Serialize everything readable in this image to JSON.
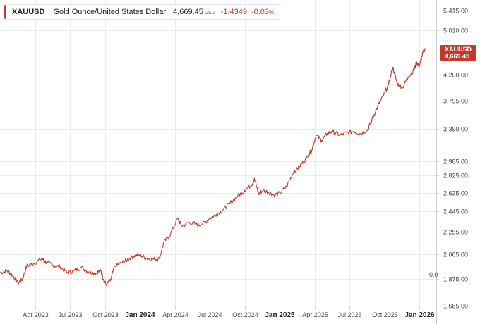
{
  "legend": {
    "symbol": "XAUUSD",
    "name": "Gold Ounce/United States Dollar",
    "price": "4,669.45",
    "unit": "USD",
    "change": "-1.4349",
    "change_pct": "-0.03",
    "pct_sign": "%"
  },
  "price_tag": {
    "symbol": "XAUUSD",
    "value": "4,669.45"
  },
  "colors": {
    "line": "#c0392b",
    "tag": "#c0392b",
    "grid": "#e6e6e6",
    "axis": "#cccccc"
  },
  "chart_data": {
    "type": "line",
    "title": "XAUUSD Gold Ounce/United States Dollar",
    "series": [
      {
        "name": "XAUUSD",
        "points": [
          [
            2023.0,
            1920
          ],
          [
            2023.05,
            1935
          ],
          [
            2023.09,
            1900
          ],
          [
            2023.13,
            1845
          ],
          [
            2023.16,
            1870
          ],
          [
            2023.19,
            1970
          ],
          [
            2023.24,
            1990
          ],
          [
            2023.3,
            2030
          ],
          [
            2023.33,
            2000
          ],
          [
            2023.38,
            1975
          ],
          [
            2023.43,
            1965
          ],
          [
            2023.48,
            1920
          ],
          [
            2023.53,
            1935
          ],
          [
            2023.58,
            1960
          ],
          [
            2023.63,
            1930
          ],
          [
            2023.68,
            1915
          ],
          [
            2023.72,
            1935
          ],
          [
            2023.74,
            1870
          ],
          [
            2023.76,
            1830
          ],
          [
            2023.79,
            1860
          ],
          [
            2023.82,
            1970
          ],
          [
            2023.87,
            1995
          ],
          [
            2023.91,
            2020
          ],
          [
            2023.95,
            2050
          ],
          [
            2024.0,
            2060
          ],
          [
            2024.05,
            2030
          ],
          [
            2024.1,
            2025
          ],
          [
            2024.14,
            2030
          ],
          [
            2024.17,
            2160
          ],
          [
            2024.22,
            2240
          ],
          [
            2024.27,
            2380
          ],
          [
            2024.3,
            2310
          ],
          [
            2024.35,
            2340
          ],
          [
            2024.4,
            2330
          ],
          [
            2024.44,
            2320
          ],
          [
            2024.5,
            2380
          ],
          [
            2024.55,
            2420
          ],
          [
            2024.6,
            2470
          ],
          [
            2024.64,
            2520
          ],
          [
            2024.7,
            2600
          ],
          [
            2024.75,
            2660
          ],
          [
            2024.8,
            2720
          ],
          [
            2024.82,
            2780
          ],
          [
            2024.85,
            2620
          ],
          [
            2024.88,
            2660
          ],
          [
            2024.92,
            2640
          ],
          [
            2024.96,
            2610
          ],
          [
            2025.0,
            2630
          ],
          [
            2025.05,
            2700
          ],
          [
            2025.1,
            2860
          ],
          [
            2025.14,
            2920
          ],
          [
            2025.19,
            3020
          ],
          [
            2025.23,
            3120
          ],
          [
            2025.26,
            3310
          ],
          [
            2025.3,
            3240
          ],
          [
            2025.34,
            3330
          ],
          [
            2025.38,
            3360
          ],
          [
            2025.43,
            3310
          ],
          [
            2025.48,
            3340
          ],
          [
            2025.53,
            3360
          ],
          [
            2025.58,
            3330
          ],
          [
            2025.63,
            3380
          ],
          [
            2025.66,
            3520
          ],
          [
            2025.7,
            3700
          ],
          [
            2025.74,
            3860
          ],
          [
            2025.78,
            4050
          ],
          [
            2025.81,
            4330
          ],
          [
            2025.84,
            4060
          ],
          [
            2025.88,
            4000
          ],
          [
            2025.92,
            4170
          ],
          [
            2025.96,
            4280
          ],
          [
            2025.98,
            4420
          ],
          [
            2026.0,
            4350
          ],
          [
            2026.02,
            4550
          ],
          [
            2026.04,
            4669.45
          ]
        ]
      }
    ],
    "x_ticks": [
      {
        "value": 2023.25,
        "label": "Apr 2023",
        "major": false
      },
      {
        "value": 2023.5,
        "label": "Jul 2023",
        "major": false
      },
      {
        "value": 2023.75,
        "label": "Oct 2023",
        "major": false
      },
      {
        "value": 2024.0,
        "label": "Jan 2024",
        "major": true
      },
      {
        "value": 2024.25,
        "label": "Apr 2024",
        "major": false
      },
      {
        "value": 2024.5,
        "label": "Jul 2024",
        "major": false
      },
      {
        "value": 2024.75,
        "label": "Oct 2024",
        "major": false
      },
      {
        "value": 2025.0,
        "label": "Jan 2025",
        "major": true
      },
      {
        "value": 2025.25,
        "label": "Apr 2025",
        "major": false
      },
      {
        "value": 2025.5,
        "label": "Jul 2025",
        "major": false
      },
      {
        "value": 2025.75,
        "label": "Oct 2025",
        "major": false
      },
      {
        "value": 2026.0,
        "label": "Jan 2026",
        "major": true
      }
    ],
    "y_ticks": [
      {
        "value": 1685,
        "label": "1,685.00"
      },
      {
        "value": 1875,
        "label": "1,875.00"
      },
      {
        "value": 2065,
        "label": "2,065.00"
      },
      {
        "value": 2255,
        "label": "2,255.00"
      },
      {
        "value": 2445,
        "label": "2,445.00"
      },
      {
        "value": 2635,
        "label": "2,635.00"
      },
      {
        "value": 2825,
        "label": "2,825.00"
      },
      {
        "value": 2985,
        "label": "2,985.00"
      },
      {
        "value": 3390,
        "label": "3,390.00"
      },
      {
        "value": 3795,
        "label": "3,795.00"
      },
      {
        "value": 4200,
        "label": "4,200.00"
      },
      {
        "value": 5010,
        "label": "5,010.00"
      },
      {
        "value": 5415,
        "label": "5,415.00"
      }
    ],
    "y_scale": "log",
    "ylim": [
      1685,
      5650
    ],
    "xlim": [
      2023.0,
      2026.12
    ],
    "baseline_marker": "0.0"
  }
}
